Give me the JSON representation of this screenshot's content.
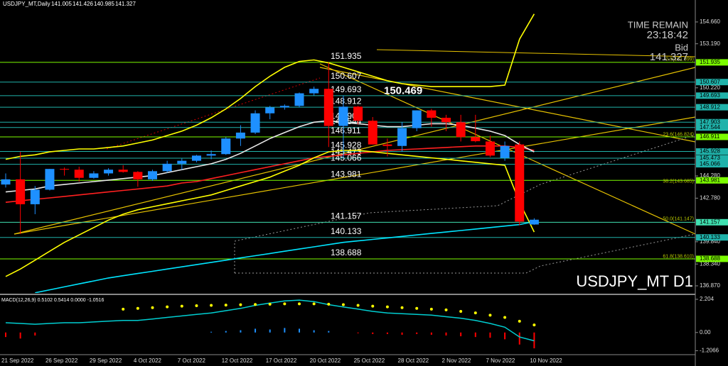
{
  "chart_data": {
    "type": "candlestick",
    "header": "USDJPY_MT,Daily",
    "categories": [
      "21 Sep 2022",
      null,
      null,
      "26 Sep 2022",
      null,
      null,
      "29 Sep 2022",
      null,
      null,
      "4 Oct 2022",
      null,
      null,
      "7 Oct 2022",
      null,
      null,
      "12 Oct 2022",
      null,
      null,
      "17 Oct 2022",
      null,
      null,
      "20 Oct 2022",
      null,
      null,
      "25 Oct 2022",
      null,
      null,
      "28 Oct 2022",
      null,
      null,
      "2 Nov 2022",
      null,
      null,
      "7 Nov 2022",
      null,
      null,
      "10 Nov 2022"
    ],
    "open": [
      143.7,
      144.05,
      142.37,
      143.35,
      144.75,
      144.7,
      144.15,
      144.45,
      144.7,
      144.55,
      144.05,
      144.6,
      145.1,
      145.3,
      145.65,
      145.75,
      146.8,
      147.2,
      148.5,
      148.9,
      149.0,
      149.85,
      150.15,
      147.65,
      148.95,
      148.0,
      146.4,
      146.3,
      147.5,
      148.7,
      148.2,
      147.9,
      146.9,
      146.6,
      145.5,
      146.4,
      141.005
    ],
    "high": [
      144.45,
      145.9,
      143.6,
      144.75,
      144.85,
      144.9,
      144.6,
      144.8,
      145.0,
      144.6,
      144.7,
      145.3,
      145.45,
      145.7,
      146.0,
      146.9,
      147.7,
      148.7,
      149.0,
      149.1,
      149.9,
      150.3,
      151.935,
      149.7,
      149.0,
      148.25,
      146.8,
      147.9,
      148.7,
      148.8,
      148.4,
      148.4,
      148.4,
      147.0,
      146.6,
      146.6,
      141.426
    ],
    "low": [
      143.5,
      140.36,
      141.7,
      143.3,
      144.3,
      143.9,
      144.1,
      144.3,
      144.5,
      143.55,
      143.95,
      144.5,
      144.7,
      145.2,
      145.4,
      145.7,
      146.3,
      147.1,
      148.1,
      148.75,
      148.9,
      149.7,
      146.23,
      145.5,
      147.75,
      146.4,
      145.6,
      145.9,
      147.3,
      147.6,
      147.3,
      146.6,
      146.55,
      145.55,
      145.3,
      140.95,
      140.985
    ],
    "close": [
      144.05,
      142.37,
      143.35,
      144.75,
      144.7,
      144.15,
      144.45,
      144.7,
      144.55,
      144.05,
      144.6,
      145.1,
      145.3,
      145.65,
      145.75,
      146.8,
      147.2,
      148.5,
      148.9,
      149.0,
      149.85,
      150.15,
      147.65,
      148.95,
      148.0,
      146.4,
      146.3,
      147.5,
      148.7,
      148.2,
      147.9,
      146.9,
      146.62,
      145.65,
      146.3,
      141.2,
      141.327
    ],
    "up_color": "#1e90ff",
    "down_color": "#ff0000",
    "overlays": [
      {
        "color": "#ff2020",
        "values": [
          142.5,
          142.6,
          142.7,
          142.8,
          142.9,
          143.0,
          143.1,
          143.2,
          143.3,
          143.4,
          143.5,
          143.6,
          143.8,
          143.9,
          144.1,
          144.3,
          144.5,
          144.7,
          144.9,
          145.1,
          145.3,
          145.5,
          145.6,
          145.7,
          145.8,
          145.9,
          146.0,
          146.05,
          146.1,
          146.15,
          146.2,
          146.25,
          146.3,
          146.3,
          146.3,
          146.2,
          146.0
        ]
      },
      {
        "color": "#e8e8e8",
        "values": [
          143.2,
          143.3,
          143.4,
          143.6,
          143.7,
          143.8,
          143.9,
          144.0,
          144.1,
          144.2,
          144.3,
          144.5,
          144.7,
          144.9,
          145.1,
          145.4,
          145.8,
          146.3,
          146.8,
          147.2,
          147.6,
          147.9,
          148.0,
          147.9,
          147.8,
          147.7,
          147.6,
          147.6,
          147.7,
          147.8,
          147.8,
          147.7,
          147.5,
          147.3,
          147.0,
          146.4,
          145.9
        ]
      },
      {
        "color": "#00e5ff",
        "values": [
          null,
          null,
          136.4,
          136.6,
          136.8,
          137.0,
          137.2,
          137.4,
          137.55,
          137.7,
          137.85,
          138.0,
          138.15,
          138.3,
          138.45,
          138.6,
          138.75,
          138.9,
          139.05,
          139.2,
          139.35,
          139.5,
          139.65,
          139.8,
          139.9,
          140.0,
          140.1,
          140.2,
          140.3,
          140.4,
          140.5,
          140.6,
          140.7,
          140.8,
          140.9,
          141.0,
          141.2
        ]
      },
      {
        "color": "#ffff00",
        "values": [
          145.4,
          145.6,
          145.7,
          145.9,
          146.0,
          146.1,
          146.1,
          146.2,
          146.3,
          146.5,
          146.7,
          147.0,
          147.3,
          147.7,
          148.2,
          148.8,
          149.5,
          150.3,
          151.0,
          151.6,
          152.0,
          152.1,
          151.9,
          151.6,
          151.3,
          151.0,
          150.7,
          150.5,
          150.4,
          150.3,
          150.3,
          150.3,
          150.3,
          150.3,
          150.4,
          153.5,
          155.2
        ]
      },
      {
        "color": "#ffff00",
        "values": [
          137.5,
          138.0,
          138.6,
          139.2,
          139.8,
          140.3,
          140.8,
          141.3,
          141.7,
          142.0,
          142.2,
          142.4,
          142.6,
          142.8,
          143.0,
          143.3,
          143.6,
          143.9,
          144.2,
          144.6,
          145.0,
          145.5,
          145.9,
          146.0,
          146.0,
          145.9,
          145.8,
          145.7,
          145.6,
          145.5,
          145.4,
          145.3,
          145.2,
          145.1,
          145.0,
          142.5,
          140.5
        ]
      }
    ],
    "ylim": [
      136.39,
      156.14
    ],
    "yticks": [
      {
        "value": 154.66,
        "label": "154.660"
      },
      {
        "value": 153.19,
        "label": "153.190"
      },
      {
        "value": 150.22,
        "label": "150.220"
      },
      {
        "value": 144.28,
        "label": "144.280"
      },
      {
        "value": 142.78,
        "label": "142.780"
      },
      {
        "value": 139.84,
        "label": "139.840"
      },
      {
        "value": 138.34,
        "label": "138.340"
      },
      {
        "value": 136.87,
        "label": "136.870"
      }
    ],
    "levels": [
      {
        "value": 151.935,
        "color": "#7cfc00"
      },
      {
        "value": 150.607,
        "color": "#20b2aa"
      },
      {
        "value": 149.693,
        "color": "#20b2aa"
      },
      {
        "value": 148.912,
        "color": "#20b2aa"
      },
      {
        "value": 147.903,
        "color": "#20b2aa"
      },
      {
        "value": 147.544,
        "color": "#20b2aa"
      },
      {
        "value": 146.911,
        "color": "#7cfc00"
      },
      {
        "value": 145.928,
        "color": "#20b2aa"
      },
      {
        "value": 145.473,
        "color": "#20b2aa"
      },
      {
        "value": 145.066,
        "color": "#20b2aa"
      },
      {
        "value": 143.981,
        "color": "#7cfc00"
      },
      {
        "value": 141.157,
        "color": "#40e0b0"
      },
      {
        "value": 140.133,
        "color": "#20b2aa"
      },
      {
        "value": 138.688,
        "color": "#7cfc00"
      }
    ],
    "fib_levels": [
      {
        "value": 151.899,
        "label": "0.0(151.899)"
      },
      {
        "value": 146.824,
        "label": "23.6(146.824)"
      },
      {
        "value": 143.685,
        "label": "38.2(143.685)"
      },
      {
        "value": 141.147,
        "label": "50.0(141.147)"
      },
      {
        "value": 138.61,
        "label": "61.8(138.610)"
      }
    ],
    "annotation": 150.469,
    "time_label": "TIME REMAIN",
    "time": "23:18:42",
    "bid_label": "Bid",
    "watermark": "USDJPY_MT D1",
    "macd": {
      "label": "MACD(12,26,9) 0.5102 0.5414 0.0000 -1.0516",
      "ylim": [
        -1.47,
        2.39
      ],
      "yticks": [
        2.204,
        {
          "value": 0,
          "label": "0.00"
        },
        -1.2066
      ],
      "line_color": "#00ced1",
      "signal_color": "#ffff00",
      "line": [
        0.65,
        0.6,
        0.55,
        0.6,
        0.65,
        0.65,
        0.7,
        0.75,
        0.8,
        0.8,
        0.9,
        1.0,
        1.1,
        1.2,
        1.3,
        1.45,
        1.6,
        1.8,
        1.95,
        2.1,
        2.15,
        2.05,
        1.85,
        1.7,
        1.55,
        1.4,
        1.3,
        1.25,
        1.2,
        1.15,
        1.05,
        0.95,
        0.8,
        0.6,
        0.35,
        -0.3,
        -0.55
      ],
      "signal": [
        null,
        null,
        null,
        null,
        null,
        null,
        null,
        null,
        1.55,
        1.6,
        1.65,
        1.7,
        1.75,
        1.78,
        1.8,
        1.82,
        1.84,
        1.86,
        1.88,
        1.9,
        1.9,
        1.9,
        1.88,
        1.85,
        1.8,
        1.75,
        1.7,
        1.65,
        1.6,
        1.55,
        1.5,
        1.4,
        1.3,
        1.15,
        1.0,
        0.75,
        0.5
      ],
      "histogram": [
        -0.3,
        -0.4,
        -0.2,
        0,
        0,
        0,
        0,
        0,
        0,
        0,
        0,
        0,
        0,
        0,
        0.05,
        0.1,
        0.15,
        0.25,
        0.2,
        0.3,
        0.25,
        0.15,
        0.1,
        0,
        -0.05,
        -0.1,
        -0.1,
        -0.15,
        -0.1,
        -0.15,
        -0.2,
        -0.25,
        -0.3,
        -0.35,
        -0.45,
        -0.8,
        -1.05
      ]
    }
  }
}
